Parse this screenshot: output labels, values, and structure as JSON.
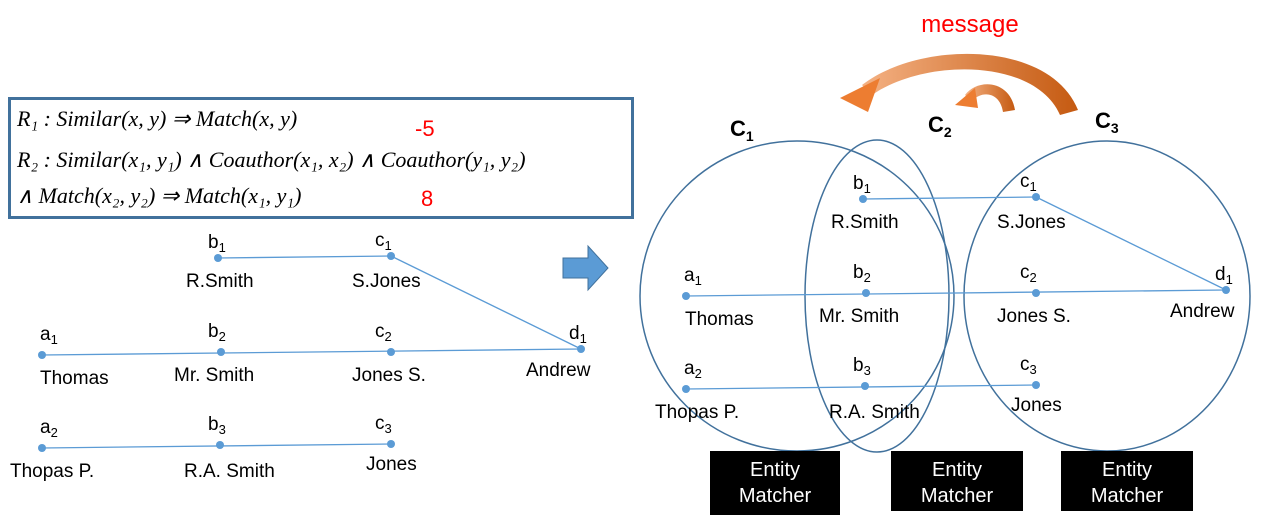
{
  "message_label": "message",
  "rules": [
    {
      "text": "R₁ : Similar(x, y) ⇒ Match(x, y)",
      "weight": "-5"
    },
    {
      "text": "R₂ : Similar(x₁, y₁) ∧ Coauthor(x₁, x₂) ∧ Coauthor(y₁, y₂)",
      "weight": ""
    },
    {
      "text": "∧ Match(x₂, y₂) ⇒ Match(x₁, y₁)",
      "weight": "8"
    }
  ],
  "clusters": [
    {
      "label": "C",
      "sub": "1"
    },
    {
      "label": "C",
      "sub": "2"
    },
    {
      "label": "C",
      "sub": "3"
    }
  ],
  "matchers": [
    {
      "line1": "Entity",
      "line2": "Matcher"
    },
    {
      "line1": "Entity",
      "line2": "Matcher"
    },
    {
      "line1": "Entity",
      "line2": "Matcher"
    }
  ],
  "nodes": {
    "a1": {
      "id": "a",
      "sub": "1",
      "name": "Thomas"
    },
    "a2": {
      "id": "a",
      "sub": "2",
      "name": "Thopas P."
    },
    "b1": {
      "id": "b",
      "sub": "1",
      "name": "R.Smith"
    },
    "b2": {
      "id": "b",
      "sub": "2",
      "name": "Mr. Smith"
    },
    "b3": {
      "id": "b",
      "sub": "3",
      "name": "R.A. Smith"
    },
    "c1": {
      "id": "c",
      "sub": "1",
      "name": "S.Jones"
    },
    "c2": {
      "id": "c",
      "sub": "2",
      "name": "Jones S."
    },
    "c3": {
      "id": "c",
      "sub": "3",
      "name": "Jones"
    },
    "d1": {
      "id": "d",
      "sub": "1",
      "name": "Andrew"
    }
  },
  "colors": {
    "accent": "#5b9bd5",
    "circle": "#41719c",
    "arrow": "#ed7d31",
    "message": "#ff0000"
  }
}
